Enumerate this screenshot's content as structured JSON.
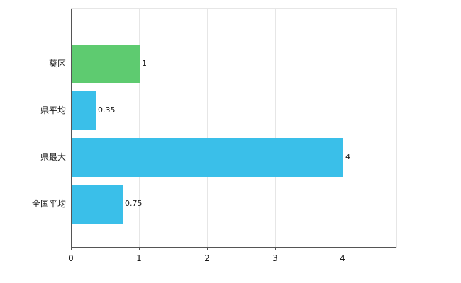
{
  "chart_data": {
    "type": "bar",
    "orientation": "horizontal",
    "title": "",
    "xlabel": "",
    "ylabel": "",
    "categories": [
      "葵区",
      "県平均",
      "県最大",
      "全国平均"
    ],
    "values": [
      1,
      0.35,
      4,
      0.75
    ],
    "value_labels": [
      "1",
      "0.35",
      "4",
      "0.75"
    ],
    "bar_colors": [
      "#5ecb70",
      "#3abfe9",
      "#3abfe9",
      "#3abfe9"
    ],
    "xlim": [
      0,
      4.8
    ],
    "xticks": [
      0,
      1,
      2,
      3,
      4
    ],
    "xtick_labels": [
      "0",
      "1",
      "2",
      "3",
      "4"
    ],
    "grid": "vertical",
    "legend": "none",
    "colors": {
      "background": "#ffffff",
      "gridline": "#e6e6e6",
      "axis": "#555555",
      "text": "#1a1a1a"
    }
  }
}
